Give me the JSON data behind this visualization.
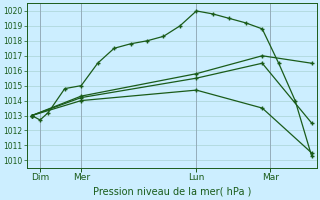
{
  "title": "Pression niveau de la mer( hPa )",
  "bg_color": "#cceeff",
  "line_color": "#1a5c1a",
  "grid_color": "#aad4d4",
  "vline_color": "#8899aa",
  "ylim": [
    1009.5,
    1020.5
  ],
  "yticks": [
    1010,
    1011,
    1012,
    1013,
    1014,
    1015,
    1016,
    1017,
    1018,
    1019,
    1020
  ],
  "xlim": [
    -0.3,
    17.3
  ],
  "day_ticks": [
    0.5,
    3,
    10,
    14.5
  ],
  "day_labels": [
    "Dim",
    "Mer",
    "Lun",
    "Mar"
  ],
  "vline_positions": [
    0.5,
    3,
    10,
    14.5
  ],
  "series": [
    {
      "x": [
        0,
        0.5,
        1,
        2,
        3,
        4,
        5,
        6,
        7,
        8,
        9,
        10,
        11,
        12,
        13,
        14,
        15,
        16,
        17
      ],
      "y": [
        1013.0,
        1012.7,
        1013.2,
        1014.8,
        1015.0,
        1016.5,
        1017.5,
        1017.8,
        1018.0,
        1018.3,
        1019.0,
        1020.0,
        1019.8,
        1019.5,
        1019.2,
        1018.8,
        1016.5,
        1014.0,
        1010.3
      ],
      "marker": "+"
    },
    {
      "x": [
        0,
        3,
        10,
        14,
        17
      ],
      "y": [
        1013.0,
        1014.3,
        1015.8,
        1017.0,
        1016.5
      ],
      "marker": "+"
    },
    {
      "x": [
        0,
        3,
        10,
        14,
        17
      ],
      "y": [
        1013.0,
        1014.2,
        1015.5,
        1016.5,
        1012.5
      ],
      "marker": "+"
    },
    {
      "x": [
        0,
        3,
        10,
        14,
        17
      ],
      "y": [
        1013.0,
        1014.0,
        1014.7,
        1013.5,
        1010.5
      ],
      "marker": "+"
    }
  ]
}
